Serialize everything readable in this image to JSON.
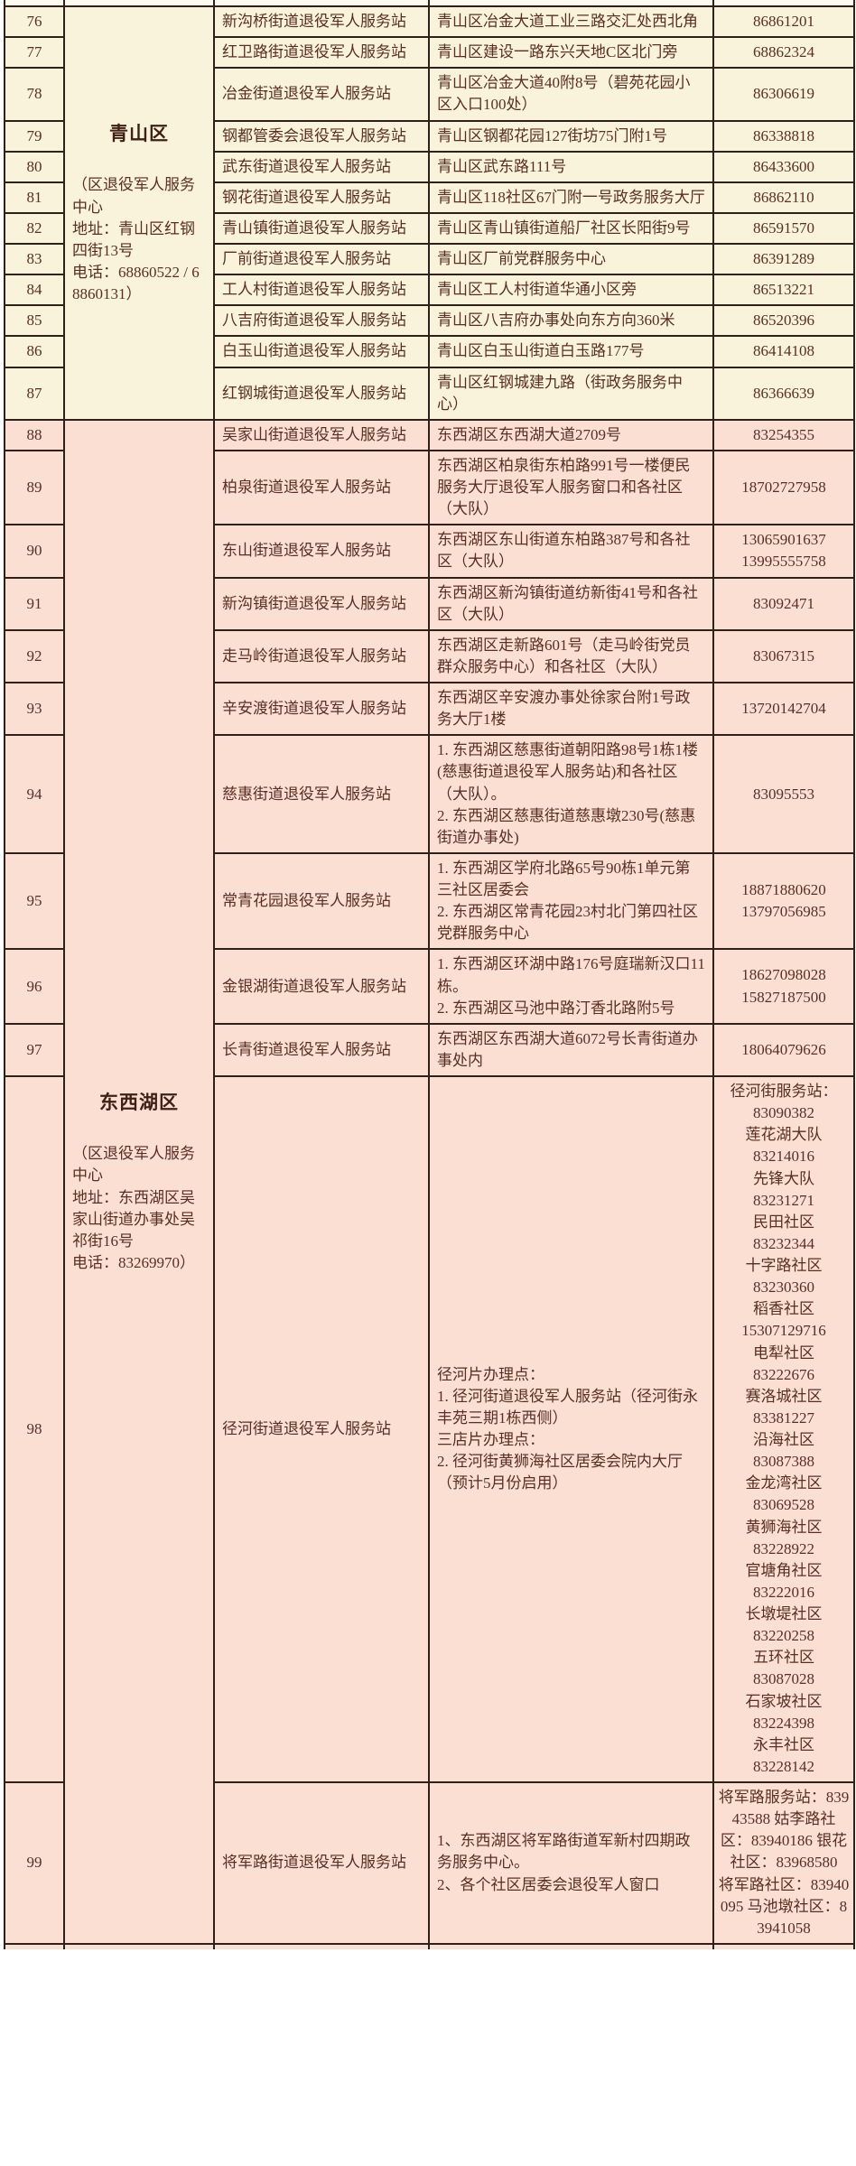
{
  "colors": {
    "page_background": "#ffffff",
    "qingshan_row_background": "#faf3dc",
    "dongxihu_row_background": "#fbdfd2",
    "grid_border": "#2f2019",
    "body_text": "#5a2f22",
    "bold_text": "#3f2015"
  },
  "table": {
    "sections": [
      {
        "id": "qingshan",
        "district": {
          "name": "青山区",
          "detail": "（区退役军人服务中心\n地址：青山区红钢四街13号\n电话：68860522 / 68860131）"
        },
        "rows": [
          {
            "no": "76",
            "station": "新沟桥街道退役军人服务站",
            "address": "青山区冶金大道工业三路交汇处西北角",
            "phone": "86861201"
          },
          {
            "no": "77",
            "station": "红卫路街道退役军人服务站",
            "address": "青山区建设一路东兴天地C区北门旁",
            "phone": "68862324"
          },
          {
            "no": "78",
            "station": "冶金街道退役军人服务站",
            "address": "青山区冶金大道40附8号（碧苑花园小区入口100处）",
            "phone": "86306619"
          },
          {
            "no": "79",
            "station": "钢都管委会退役军人服务站",
            "address": "青山区钢都花园127街坊75门附1号",
            "phone": "86338818"
          },
          {
            "no": "80",
            "station": "武东街道退役军人服务站",
            "address": "青山区武东路111号",
            "phone": "86433600"
          },
          {
            "no": "81",
            "station": "钢花街道退役军人服务站",
            "address": "青山区118社区67门附一号政务服务大厅",
            "phone": "86862110"
          },
          {
            "no": "82",
            "station": "青山镇街道退役军人服务站",
            "address": "青山区青山镇街道船厂社区长阳街9号",
            "phone": "86591570"
          },
          {
            "no": "83",
            "station": "厂前街道退役军人服务站",
            "address": "青山区厂前党群服务中心",
            "phone": "86391289"
          },
          {
            "no": "84",
            "station": "工人村街道退役军人服务站",
            "address": "青山区工人村街道华通小区旁",
            "phone": "86513221"
          },
          {
            "no": "85",
            "station": "八吉府街道退役军人服务站",
            "address": "青山区八吉府办事处向东方向360米",
            "phone": "86520396"
          },
          {
            "no": "86",
            "station": "白玉山街道退役军人服务站",
            "address": "青山区白玉山街道白玉路177号",
            "phone": "86414108"
          },
          {
            "no": "87",
            "station": "红钢城街道退役军人服务站",
            "address": "青山区红钢城建九路（街政务服务中心）",
            "phone": "86366639"
          }
        ]
      },
      {
        "id": "dongxihu",
        "district": {
          "name": "东西湖区",
          "detail": "（区退役军人服务中心\n地址：东西湖区吴家山街道办事处吴祁街16号\n电话：83269970）"
        },
        "rows": [
          {
            "no": "88",
            "station": "吴家山街道退役军人服务站",
            "address": "东西湖区东西湖大道2709号",
            "phone": "83254355"
          },
          {
            "no": "89",
            "station": "柏泉街道退役军人服务站",
            "address": "东西湖区柏泉街东柏路991号一楼便民服务大厅退役军人服务窗口和各社区（大队）",
            "phone": "18702727958"
          },
          {
            "no": "90",
            "station": "东山街道退役军人服务站",
            "address": "东西湖区东山街道东柏路387号和各社区（大队）",
            "phone": [
              "13065901637",
              "13995555758"
            ]
          },
          {
            "no": "91",
            "station": "新沟镇街道退役军人服务站",
            "address": "东西湖区新沟镇街道纺新街41号和各社区（大队）",
            "phone": "83092471"
          },
          {
            "no": "92",
            "station": "走马岭街道退役军人服务站",
            "address": "东西湖区走新路601号（走马岭街党员群众服务中心）和各社区（大队）",
            "phone": "83067315"
          },
          {
            "no": "93",
            "station": "辛安渡街道退役军人服务站",
            "address": "东西湖区辛安渡办事处徐家台附1号政务大厅1楼",
            "phone": "13720142704"
          },
          {
            "no": "94",
            "station": "慈惠街道退役军人服务站",
            "address": "1. 东西湖区慈惠街道朝阳路98号1栋1楼(慈惠街道退役军人服务站)和各社区（大队）。\n2. 东西湖区慈惠街道慈惠墩230号(慈惠街道办事处)",
            "phone": "83095553"
          },
          {
            "no": "95",
            "station": "常青花园退役军人服务站",
            "address": "1. 东西湖区学府北路65号90栋1单元第三社区居委会\n2. 东西湖区常青花园23村北门第四社区党群服务中心",
            "phone": [
              "18871880620",
              "13797056985"
            ]
          },
          {
            "no": "96",
            "station": "金银湖街道退役军人服务站",
            "address": "1. 东西湖区环湖中路176号庭瑞新汉口11栋。\n2. 东西湖区马池中路汀香北路附5号",
            "phone": [
              "18627098028",
              "15827187500"
            ]
          },
          {
            "no": "97",
            "station": "长青街道退役军人服务站",
            "address": "东西湖区东西湖大道6072号长青街道办事处内",
            "phone": "18064079626"
          },
          {
            "no": "98",
            "station": "径河街道退役军人服务站",
            "address": "径河片办理点：\n1. 径河街道退役军人服务站（径河街永丰苑三期1栋西侧）\n三店片办理点：\n2. 径河街黄狮海社区居委会院内大厅（预计5月份启用）",
            "phone": [
              "径河街服务站：",
              "83090382",
              "莲花湖大队",
              "83214016",
              "先锋大队",
              "83231271",
              "民田社区",
              "83232344",
              "十字路社区",
              "83230360",
              "稻香社区",
              "15307129716",
              "电犁社区",
              "83222676",
              "赛洛城社区",
              "83381227",
              "沿海社区",
              "83087388",
              "金龙湾社区",
              "83069528",
              "黄狮海社区",
              "83228922",
              "官塘角社区",
              "83222016",
              "长墩堤社区",
              "83220258",
              "五环社区",
              "83087028",
              "石家坡社区",
              "83224398",
              "永丰社区",
              "83228142"
            ]
          },
          {
            "no": "99",
            "station": "将军路街道退役军人服务站",
            "address": "1、东西湖区将军路街道军新村四期政务服务中心。\n2、各个社区居委会退役军人窗口",
            "phone": "将军路服务站：83943588 姑李路社区：83940186 银花社区：83968580　将军路社区：83940095 马池墩社区：83941058"
          }
        ]
      }
    ]
  }
}
